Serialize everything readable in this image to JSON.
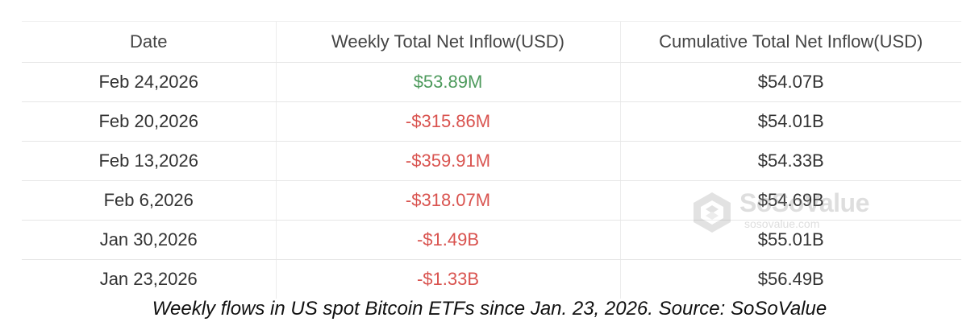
{
  "chart_data": {
    "type": "table",
    "columns": [
      "Date",
      "Weekly Total Net Inflow(USD)",
      "Cumulative Total Net Inflow(USD)"
    ],
    "rows": [
      {
        "date": "Feb 24,2026",
        "weekly": "$53.89M",
        "cumulative": "$54.07B",
        "weekly_sign": "positive"
      },
      {
        "date": "Feb 20,2026",
        "weekly": "-$315.86M",
        "cumulative": "$54.01B",
        "weekly_sign": "negative"
      },
      {
        "date": "Feb 13,2026",
        "weekly": "-$359.91M",
        "cumulative": "$54.33B",
        "weekly_sign": "negative"
      },
      {
        "date": "Feb 6,2026",
        "weekly": "-$318.07M",
        "cumulative": "$54.69B",
        "weekly_sign": "negative"
      },
      {
        "date": "Jan 30,2026",
        "weekly": "-$1.49B",
        "cumulative": "$55.01B",
        "weekly_sign": "negative"
      },
      {
        "date": "Jan 23,2026",
        "weekly": "-$1.33B",
        "cumulative": "$56.49B",
        "weekly_sign": "negative"
      }
    ],
    "colors": {
      "positive": "#4d9a5c",
      "negative": "#d9534f"
    }
  },
  "caption": "Weekly flows in US spot Bitcoin ETFs since Jan. 23, 2026. Source: SoSoValue",
  "watermark": {
    "brand": "SoSoValue",
    "url": "sosovalue.com",
    "icon": "sosovalue-logo-icon"
  }
}
